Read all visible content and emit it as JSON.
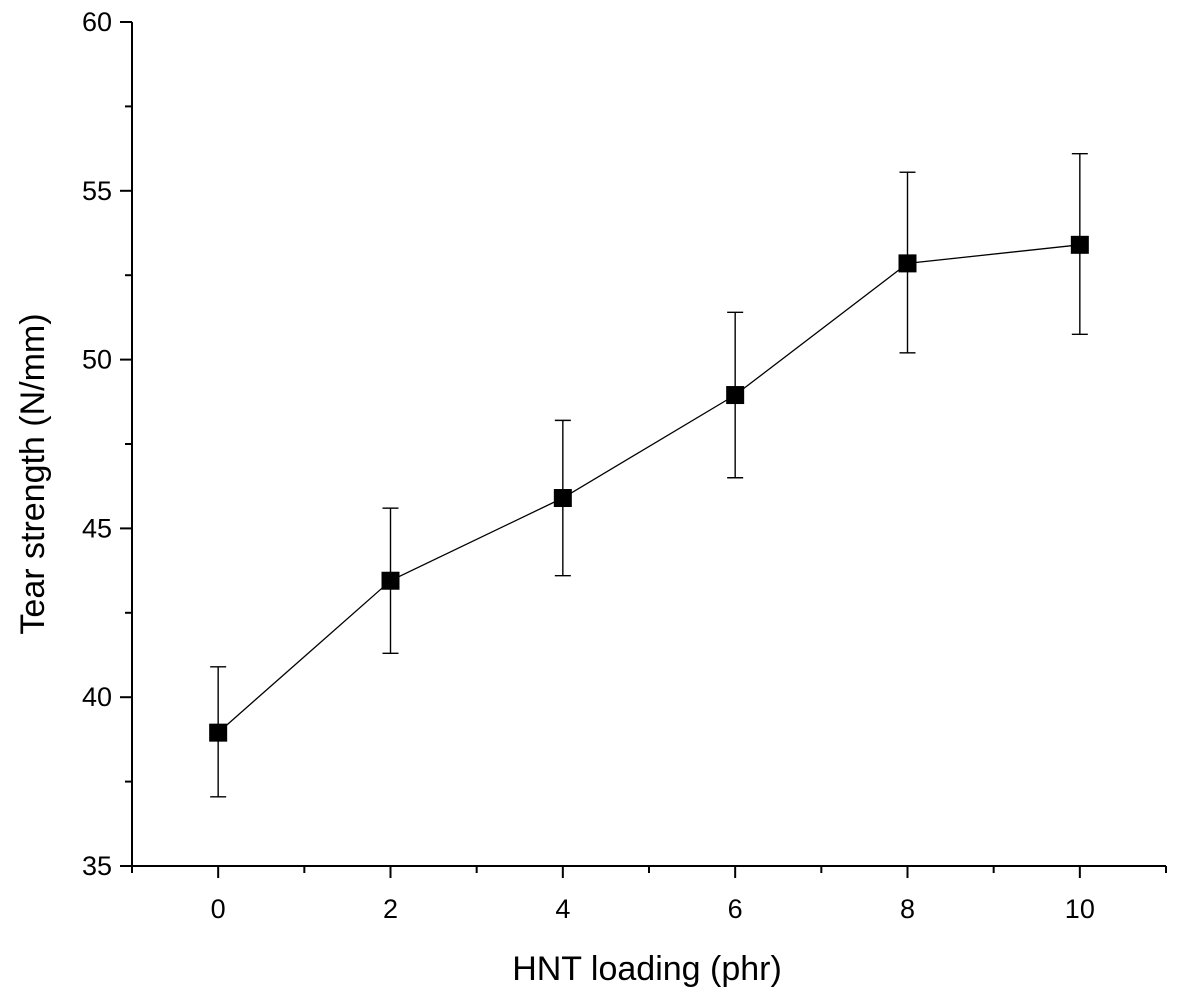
{
  "chart_data": {
    "type": "line",
    "title": "",
    "xlabel": "HNT loading (phr)",
    "ylabel": "Tear strength (N/mm)",
    "xlim": [
      -1,
      11
    ],
    "ylim": [
      35,
      60
    ],
    "x_ticks": [
      0,
      2,
      4,
      6,
      8,
      10
    ],
    "x_minor_ticks": [
      -1,
      1,
      3,
      5,
      7,
      9,
      11
    ],
    "y_ticks": [
      35,
      40,
      45,
      50,
      55,
      60
    ],
    "series": [
      {
        "x": [
          0,
          2,
          4,
          6,
          8,
          10
        ],
        "y": [
          38.95,
          43.45,
          45.9,
          48.95,
          52.85,
          53.4
        ],
        "y_err_low": [
          37.05,
          41.3,
          43.6,
          46.5,
          50.2,
          50.75
        ],
        "y_err_high": [
          40.9,
          45.6,
          48.2,
          51.4,
          55.55,
          56.1
        ],
        "marker": "square",
        "color": "#000000"
      }
    ],
    "legend": "none",
    "grid": false
  }
}
